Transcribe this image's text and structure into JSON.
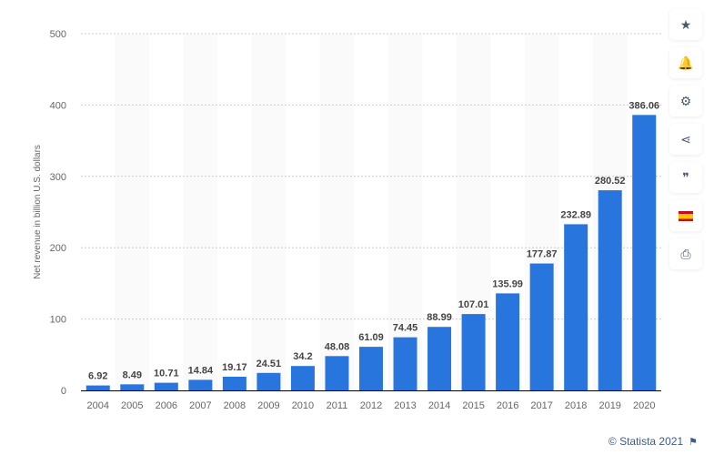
{
  "chart_data": {
    "type": "bar",
    "categories": [
      "2004",
      "2005",
      "2006",
      "2007",
      "2008",
      "2009",
      "2010",
      "2011",
      "2012",
      "2013",
      "2014",
      "2015",
      "2016",
      "2017",
      "2018",
      "2019",
      "2020"
    ],
    "values": [
      6.92,
      8.49,
      10.71,
      14.84,
      19.17,
      24.51,
      34.2,
      48.08,
      61.09,
      74.45,
      88.99,
      107.01,
      135.99,
      177.87,
      232.89,
      280.52,
      386.06
    ],
    "value_labels": [
      "6.92",
      "8.49",
      "10.71",
      "14.84",
      "19.17",
      "24.51",
      "34.2",
      "48.08",
      "61.09",
      "74.45",
      "88.99",
      "107.01",
      "135.99",
      "177.87",
      "232.89",
      "280.52",
      "386.06"
    ],
    "ylabel": "Net revenue in billion U.S. dollars",
    "ylim": [
      0,
      500
    ],
    "yticks": [
      0,
      100,
      200,
      300,
      400,
      500
    ],
    "grid": true,
    "bar_color": "#2876dd"
  },
  "sidebar": {
    "buttons": [
      {
        "icon": "star-icon",
        "glyph": "★"
      },
      {
        "icon": "bell-icon",
        "glyph": "🔔"
      },
      {
        "icon": "gear-icon",
        "glyph": "⚙"
      },
      {
        "icon": "share-icon",
        "glyph": "⋖"
      },
      {
        "icon": "quote-icon",
        "glyph": "❞"
      },
      {
        "icon": "flag-spain-icon",
        "glyph": ""
      },
      {
        "icon": "print-icon",
        "glyph": "⎙"
      }
    ]
  },
  "footer": {
    "credit": "© Statista 2021"
  }
}
